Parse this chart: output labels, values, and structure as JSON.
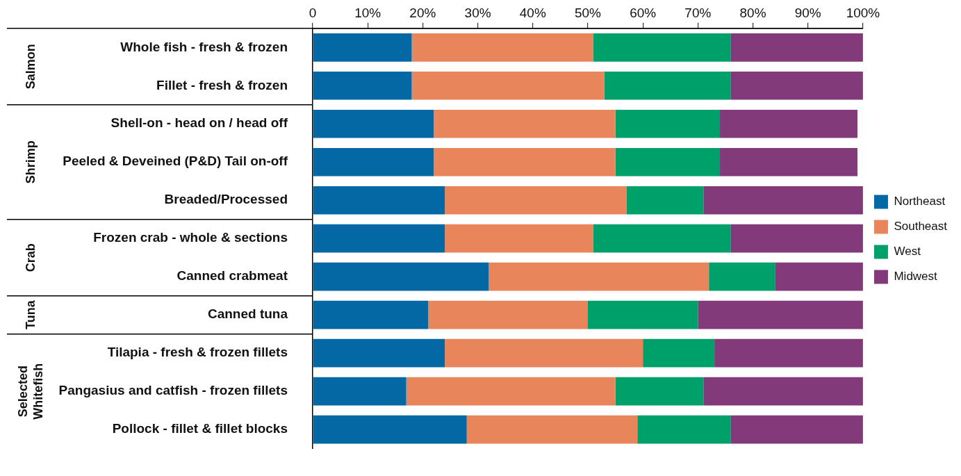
{
  "chart_data": {
    "type": "bar",
    "orientation": "horizontal",
    "stacked": true,
    "grid": false,
    "legend": "right",
    "categories": [
      "Whole fish - fresh & frozen",
      "Fillet - fresh & frozen",
      "Shell-on - head on / head off",
      "Peeled & Deveined (P&D) Tail on-off",
      "Breaded/Processed",
      "Frozen crab - whole & sections",
      "Canned crabmeat",
      "Canned tuna",
      "Tilapia - fresh & frozen fillets",
      "Pangasius and catfish - frozen fillets",
      "Pollock - fillet & fillet blocks"
    ],
    "series": [
      {
        "name": "Northeast",
        "color": "#0468a4",
        "values": [
          18,
          18,
          22,
          22,
          24,
          24,
          32,
          21,
          24,
          17,
          28
        ]
      },
      {
        "name": "Southeast",
        "color": "#e8855a",
        "values": [
          33,
          35,
          33,
          33,
          33,
          27,
          40,
          29,
          36,
          38,
          31
        ]
      },
      {
        "name": "West",
        "color": "#00a06b",
        "values": [
          25,
          23,
          19,
          19,
          14,
          25,
          12,
          20,
          13,
          16,
          17
        ]
      },
      {
        "name": "Midwest",
        "color": "#823a7b",
        "values": [
          24,
          24,
          25,
          25,
          29,
          24,
          16,
          30,
          27,
          29,
          24
        ]
      }
    ],
    "xlim": [
      0,
      100
    ],
    "xticks": [
      0,
      {
        "value": 10,
        "label": "10%"
      },
      {
        "value": 20,
        "label": "20%"
      },
      {
        "value": 30,
        "label": "30%"
      },
      {
        "value": 40,
        "label": "40%"
      },
      {
        "value": 50,
        "label": "50%"
      },
      {
        "value": 60,
        "label": "60%"
      },
      {
        "value": 70,
        "label": "70%"
      },
      {
        "value": 80,
        "label": "80%"
      },
      {
        "value": 90,
        "label": "90%"
      },
      {
        "value": 100,
        "label": "100%"
      }
    ],
    "annotations": [
      "Salmon",
      "Shrimp",
      "Crab",
      "Tuna",
      "Selected\nWhitefish"
    ]
  }
}
